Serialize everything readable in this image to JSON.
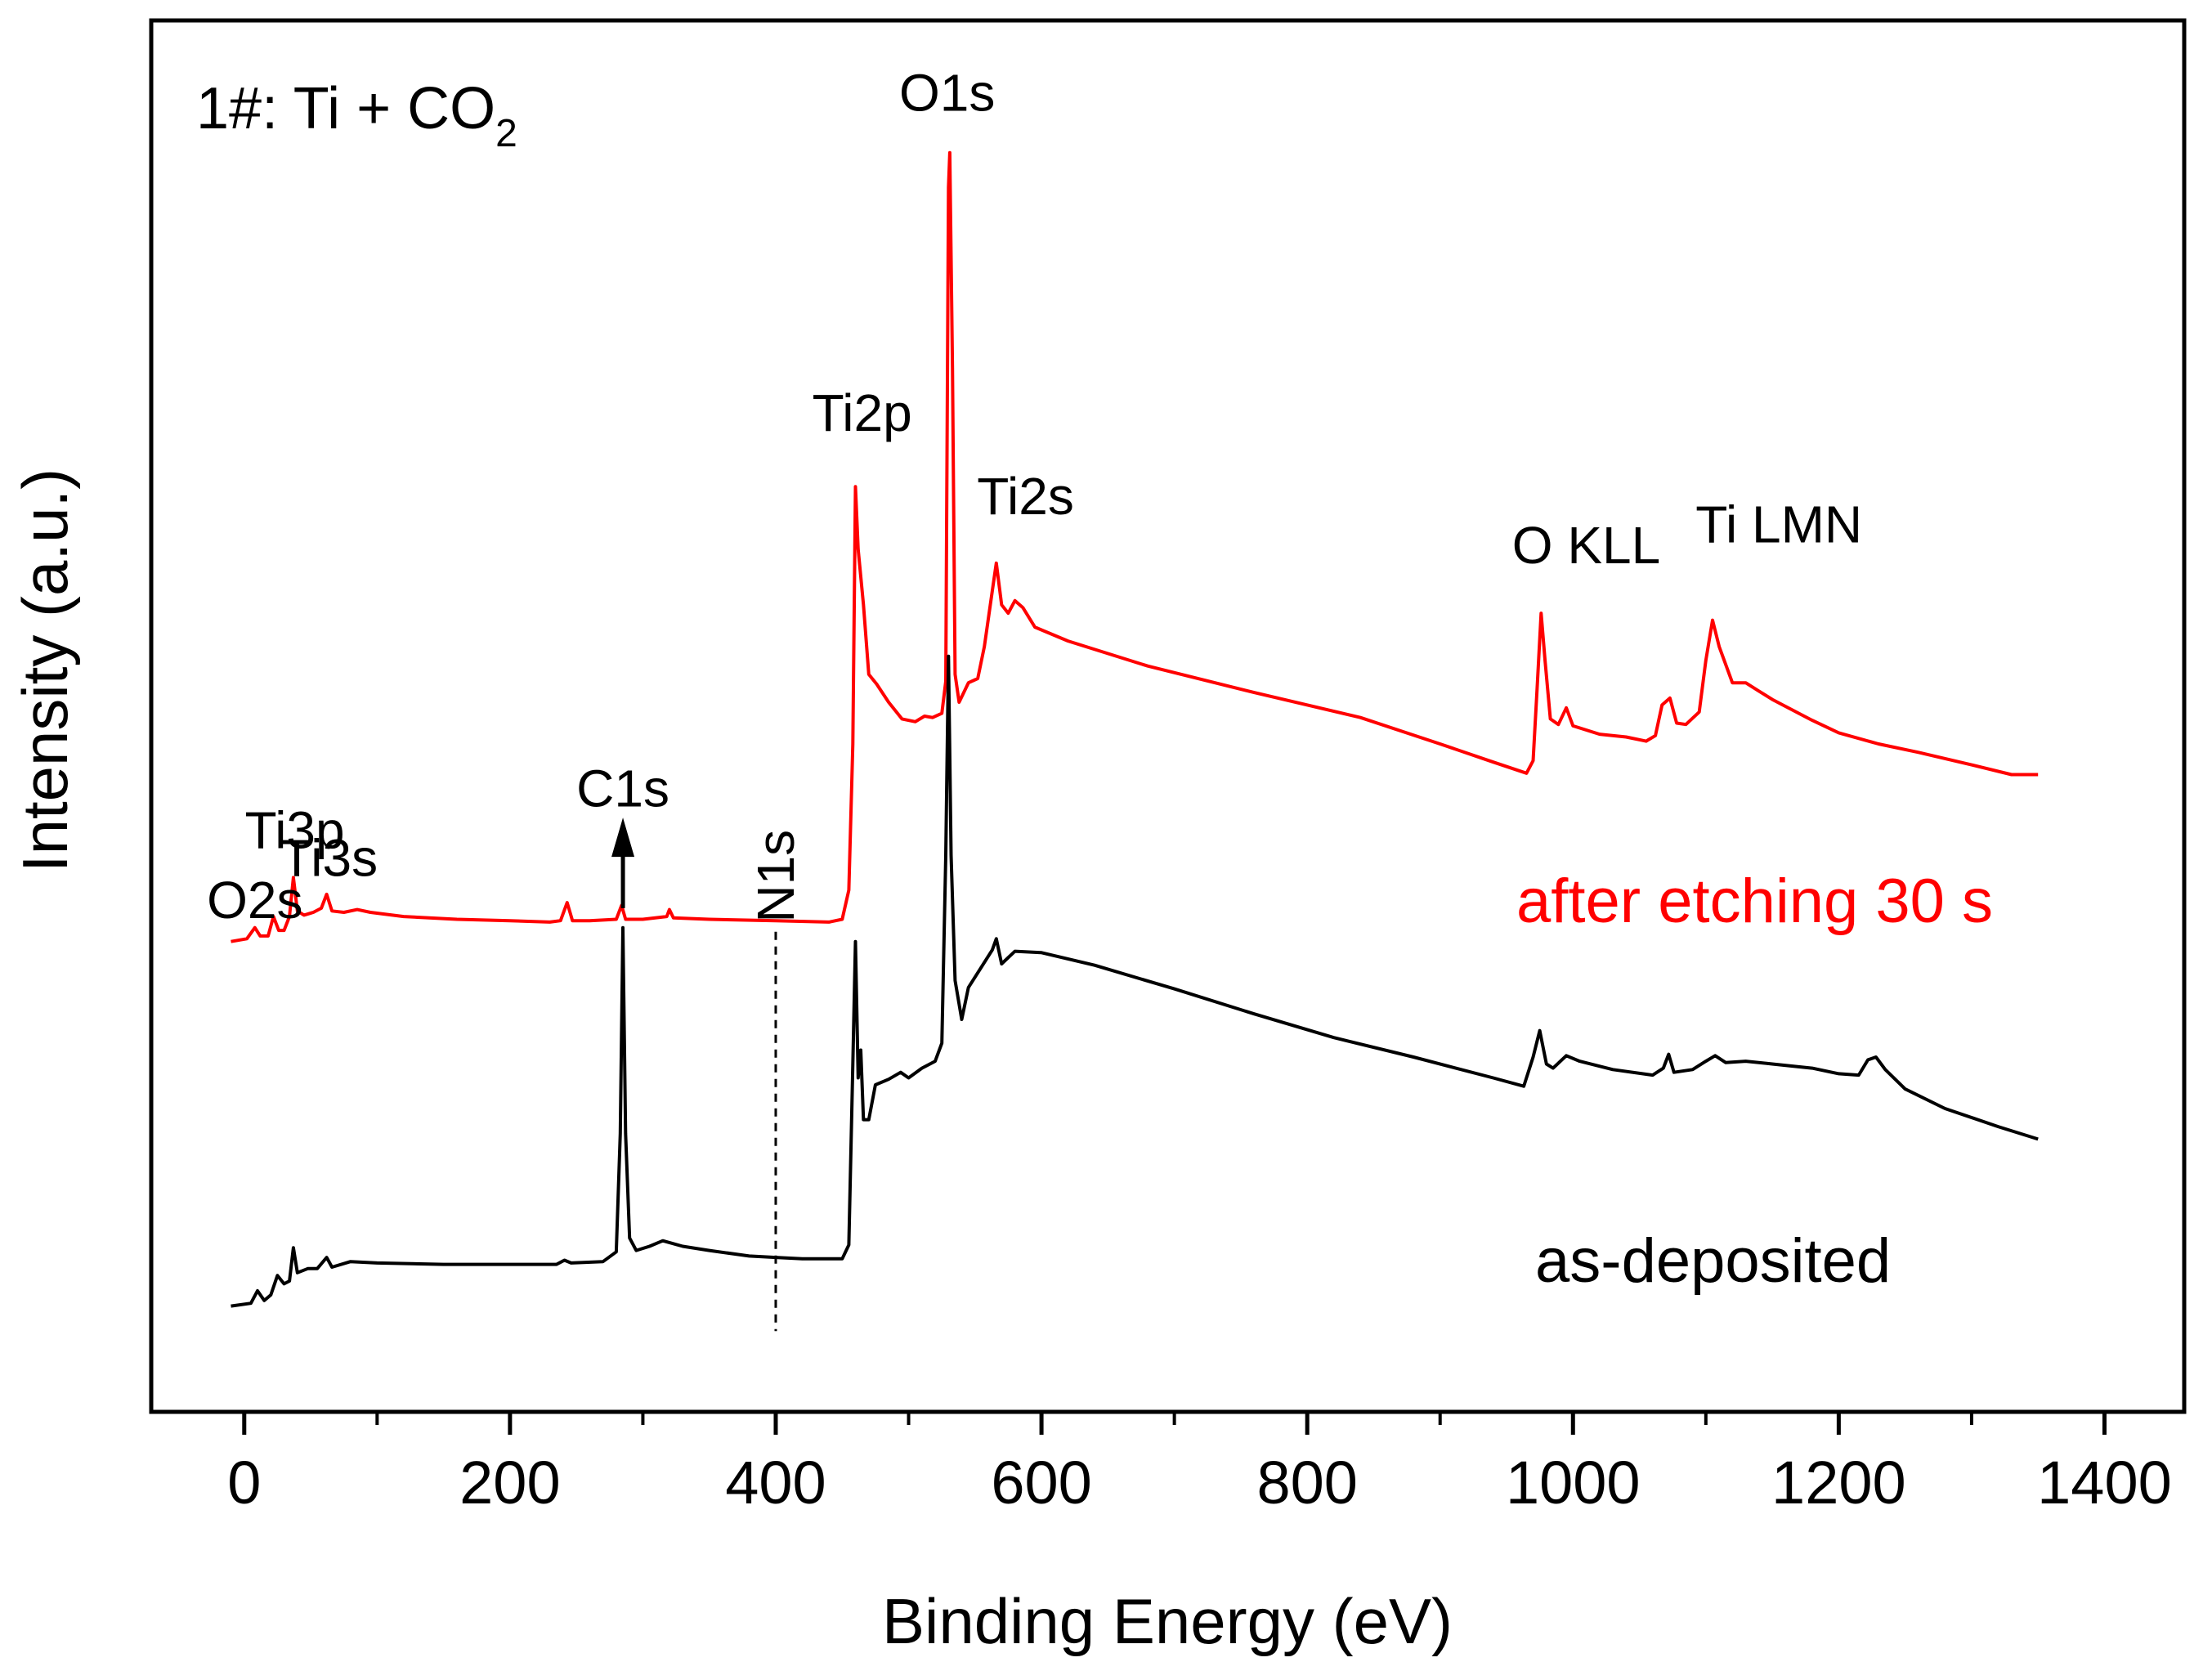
{
  "chart_data": {
    "type": "line",
    "title": "1#: Ti + CO",
    "title_subscript": "2",
    "xlabel": "Binding Energy (eV)",
    "ylabel": "Intensity (a.u.)",
    "xlim": [
      -70,
      1460
    ],
    "ylim": [
      0,
      100
    ],
    "x_ticks": [
      0,
      200,
      400,
      600,
      800,
      1000,
      1200,
      1400
    ],
    "x_tick_labels": [
      "0",
      "200",
      "400",
      "600",
      "800",
      "1000",
      "1200",
      "1400"
    ],
    "y_ticks_shown": false,
    "series": [
      {
        "name": "after etching 30 s",
        "label": "after etching 30 s",
        "color": "#ff0000",
        "points": [
          [
            -10,
            33.8
          ],
          [
            2,
            34.0
          ],
          [
            8,
            34.8
          ],
          [
            12,
            34.2
          ],
          [
            18,
            34.2
          ],
          [
            22,
            35.6
          ],
          [
            26,
            34.6
          ],
          [
            30,
            34.6
          ],
          [
            34,
            35.6
          ],
          [
            37,
            38.4
          ],
          [
            40,
            36.0
          ],
          [
            45,
            35.7
          ],
          [
            52,
            35.9
          ],
          [
            58,
            36.2
          ],
          [
            62,
            37.2
          ],
          [
            66,
            36.0
          ],
          [
            75,
            35.9
          ],
          [
            85,
            36.1
          ],
          [
            95,
            35.9
          ],
          [
            120,
            35.6
          ],
          [
            160,
            35.4
          ],
          [
            200,
            35.3
          ],
          [
            230,
            35.2
          ],
          [
            238,
            35.3
          ],
          [
            243,
            36.6
          ],
          [
            247,
            35.3
          ],
          [
            260,
            35.3
          ],
          [
            280,
            35.4
          ],
          [
            284,
            36.4
          ],
          [
            287,
            35.4
          ],
          [
            300,
            35.4
          ],
          [
            318,
            35.6
          ],
          [
            320,
            36.1
          ],
          [
            323,
            35.5
          ],
          [
            350,
            35.4
          ],
          [
            400,
            35.3
          ],
          [
            440,
            35.2
          ],
          [
            450,
            35.4
          ],
          [
            455,
            37.5
          ],
          [
            458,
            48.0
          ],
          [
            460,
            66.5
          ],
          [
            462,
            62.0
          ],
          [
            466,
            58.0
          ],
          [
            470,
            53.0
          ],
          [
            476,
            52.3
          ],
          [
            485,
            51.0
          ],
          [
            495,
            49.8
          ],
          [
            505,
            49.6
          ],
          [
            512,
            50.0
          ],
          [
            518,
            49.9
          ],
          [
            525,
            50.2
          ],
          [
            528,
            52.5
          ],
          [
            530,
            88.0
          ],
          [
            531,
            90.5
          ],
          [
            533,
            75.0
          ],
          [
            535,
            53.0
          ],
          [
            538,
            51.0
          ],
          [
            545,
            52.4
          ],
          [
            552,
            52.7
          ],
          [
            557,
            55.0
          ],
          [
            563,
            59.0
          ],
          [
            566,
            61.0
          ],
          [
            570,
            58.0
          ],
          [
            575,
            57.4
          ],
          [
            580,
            58.3
          ],
          [
            586,
            57.8
          ],
          [
            595,
            56.4
          ],
          [
            620,
            55.4
          ],
          [
            680,
            53.6
          ],
          [
            760,
            51.7
          ],
          [
            840,
            49.9
          ],
          [
            900,
            48.0
          ],
          [
            940,
            46.7
          ],
          [
            965,
            45.9
          ],
          [
            970,
            46.8
          ],
          [
            973,
            52.0
          ],
          [
            976,
            57.4
          ],
          [
            979,
            54.0
          ],
          [
            983,
            49.8
          ],
          [
            989,
            49.4
          ],
          [
            995,
            50.6
          ],
          [
            1000,
            49.3
          ],
          [
            1020,
            48.7
          ],
          [
            1040,
            48.5
          ],
          [
            1055,
            48.2
          ],
          [
            1062,
            48.6
          ],
          [
            1067,
            50.8
          ],
          [
            1073,
            51.3
          ],
          [
            1078,
            49.5
          ],
          [
            1085,
            49.4
          ],
          [
            1095,
            50.3
          ],
          [
            1100,
            54.0
          ],
          [
            1105,
            56.9
          ],
          [
            1110,
            55.0
          ],
          [
            1120,
            52.4
          ],
          [
            1130,
            52.4
          ],
          [
            1140,
            51.8
          ],
          [
            1150,
            51.2
          ],
          [
            1180,
            49.7
          ],
          [
            1200,
            48.8
          ],
          [
            1230,
            48.0
          ],
          [
            1260,
            47.4
          ],
          [
            1300,
            46.5
          ],
          [
            1330,
            45.8
          ],
          [
            1350,
            45.8
          ]
        ]
      },
      {
        "name": "as-deposited",
        "label": "as-deposited",
        "color": "#000000",
        "points": [
          [
            -10,
            7.6
          ],
          [
            5,
            7.8
          ],
          [
            10,
            8.7
          ],
          [
            15,
            8.0
          ],
          [
            20,
            8.4
          ],
          [
            25,
            9.8
          ],
          [
            30,
            9.2
          ],
          [
            34,
            9.4
          ],
          [
            37,
            11.8
          ],
          [
            40,
            10.0
          ],
          [
            48,
            10.3
          ],
          [
            55,
            10.3
          ],
          [
            62,
            11.1
          ],
          [
            66,
            10.4
          ],
          [
            80,
            10.8
          ],
          [
            100,
            10.7
          ],
          [
            150,
            10.6
          ],
          [
            200,
            10.6
          ],
          [
            235,
            10.6
          ],
          [
            241,
            10.9
          ],
          [
            246,
            10.7
          ],
          [
            270,
            10.8
          ],
          [
            280,
            11.5
          ],
          [
            283,
            20.0
          ],
          [
            285,
            34.8
          ],
          [
            287,
            20.0
          ],
          [
            290,
            12.5
          ],
          [
            295,
            11.6
          ],
          [
            305,
            11.9
          ],
          [
            315,
            12.3
          ],
          [
            330,
            11.9
          ],
          [
            350,
            11.6
          ],
          [
            380,
            11.2
          ],
          [
            400,
            11.1
          ],
          [
            420,
            11.0
          ],
          [
            450,
            11.0
          ],
          [
            455,
            12.0
          ],
          [
            458,
            25.0
          ],
          [
            460,
            33.8
          ],
          [
            462,
            24.0
          ],
          [
            464,
            26.0
          ],
          [
            466,
            21.0
          ],
          [
            470,
            21.0
          ],
          [
            475,
            23.5
          ],
          [
            485,
            23.9
          ],
          [
            494,
            24.4
          ],
          [
            500,
            24.0
          ],
          [
            510,
            24.7
          ],
          [
            520,
            25.2
          ],
          [
            525,
            26.5
          ],
          [
            528,
            40.0
          ],
          [
            530,
            54.3
          ],
          [
            532,
            40.0
          ],
          [
            535,
            31.0
          ],
          [
            540,
            28.2
          ],
          [
            545,
            30.5
          ],
          [
            555,
            32.0
          ],
          [
            563,
            33.2
          ],
          [
            566,
            34.0
          ],
          [
            570,
            32.2
          ],
          [
            580,
            33.1
          ],
          [
            600,
            33.0
          ],
          [
            640,
            32.1
          ],
          [
            700,
            30.4
          ],
          [
            760,
            28.6
          ],
          [
            820,
            26.9
          ],
          [
            880,
            25.5
          ],
          [
            940,
            24.0
          ],
          [
            963,
            23.4
          ],
          [
            970,
            25.5
          ],
          [
            975,
            27.4
          ],
          [
            980,
            25.0
          ],
          [
            985,
            24.7
          ],
          [
            995,
            25.6
          ],
          [
            1005,
            25.2
          ],
          [
            1030,
            24.6
          ],
          [
            1060,
            24.2
          ],
          [
            1068,
            24.7
          ],
          [
            1072,
            25.7
          ],
          [
            1076,
            24.4
          ],
          [
            1090,
            24.6
          ],
          [
            1100,
            25.2
          ],
          [
            1107,
            25.6
          ],
          [
            1115,
            25.1
          ],
          [
            1130,
            25.2
          ],
          [
            1150,
            25.0
          ],
          [
            1180,
            24.7
          ],
          [
            1200,
            24.3
          ],
          [
            1215,
            24.2
          ],
          [
            1222,
            25.3
          ],
          [
            1228,
            25.5
          ],
          [
            1235,
            24.6
          ],
          [
            1250,
            23.2
          ],
          [
            1280,
            21.8
          ],
          [
            1320,
            20.5
          ],
          [
            1350,
            19.6
          ]
        ]
      }
    ],
    "annotations": [
      {
        "name": "o2s",
        "text": "O2s",
        "x": 8,
        "y": 35.5
      },
      {
        "name": "ti3p",
        "text": "Ti3p",
        "x": 38,
        "y": 40.5
      },
      {
        "name": "ti3s",
        "text": "Ti3s",
        "x": 64,
        "y": 38.5
      },
      {
        "name": "c1s",
        "text": "C1s",
        "x": 285,
        "y": 43.5
      },
      {
        "name": "n1s",
        "text": "N1s",
        "x": 400,
        "y": 38.5
      },
      {
        "name": "ti2p",
        "text": "Ti2p",
        "x": 465,
        "y": 70.5
      },
      {
        "name": "o1s",
        "text": "O1s",
        "x": 529,
        "y": 93.5
      },
      {
        "name": "ti2s",
        "text": "Ti2s",
        "x": 588,
        "y": 64.5
      },
      {
        "name": "o-kll",
        "text": "O  KLL",
        "x": 1010,
        "y": 61
      },
      {
        "name": "ti-lmn",
        "text": "Ti LMN",
        "x": 1155,
        "y": 62.5
      }
    ],
    "c1s_arrow": {
      "x": 285,
      "y_from": 36.2,
      "y_to": 42
    },
    "n1s_reference_line": {
      "x": 400,
      "y_from": 34.5,
      "y_to": 5.8
    }
  }
}
